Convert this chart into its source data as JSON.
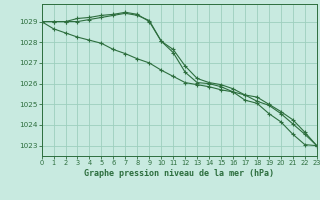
{
  "title": "Graphe pression niveau de la mer (hPa)",
  "bg_color": "#c8eae0",
  "line_color": "#2d6e3e",
  "grid_color": "#9ecfbe",
  "x_min": 0,
  "x_max": 23,
  "y_min": 1022.5,
  "y_max": 1029.85,
  "series": [
    {
      "x": [
        0,
        1,
        2,
        3,
        4,
        5,
        6,
        7,
        8,
        9,
        10,
        11,
        12,
        13,
        14,
        15,
        16,
        17,
        18,
        19,
        20,
        21,
        22,
        23
      ],
      "y": [
        1029.0,
        1029.0,
        1029.0,
        1029.15,
        1029.2,
        1029.3,
        1029.35,
        1029.45,
        1029.35,
        1029.0,
        1028.05,
        1027.5,
        1026.55,
        1026.05,
        1026.0,
        1025.85,
        1025.6,
        1025.2,
        1025.05,
        1024.55,
        1024.15,
        1023.55,
        1023.05,
        1023.0
      ]
    },
    {
      "x": [
        0,
        1,
        2,
        3,
        4,
        5,
        6,
        7,
        8,
        9,
        10,
        11,
        12,
        13,
        14,
        15,
        16,
        17,
        18,
        19,
        20,
        21,
        22,
        23
      ],
      "y": [
        1029.0,
        1028.65,
        1028.45,
        1028.25,
        1028.1,
        1027.95,
        1027.65,
        1027.45,
        1027.2,
        1027.0,
        1026.65,
        1026.35,
        1026.05,
        1025.95,
        1025.85,
        1025.7,
        1025.6,
        1025.45,
        1025.35,
        1025.0,
        1024.65,
        1024.25,
        1023.65,
        1023.0
      ]
    },
    {
      "x": [
        0,
        1,
        2,
        3,
        4,
        5,
        6,
        7,
        8,
        9,
        10,
        11,
        12,
        13,
        14,
        15,
        16,
        17,
        18,
        19,
        20,
        21,
        22,
        23
      ],
      "y": [
        1029.0,
        1029.0,
        1029.0,
        1029.0,
        1029.1,
        1029.2,
        1029.3,
        1029.4,
        1029.3,
        1029.05,
        1028.05,
        1027.65,
        1026.85,
        1026.25,
        1026.05,
        1025.95,
        1025.75,
        1025.45,
        1025.15,
        1024.95,
        1024.55,
        1024.05,
        1023.55,
        1023.0
      ]
    }
  ],
  "yticks": [
    1023,
    1024,
    1025,
    1026,
    1027,
    1028,
    1029
  ],
  "xticks": [
    0,
    1,
    2,
    3,
    4,
    5,
    6,
    7,
    8,
    9,
    10,
    11,
    12,
    13,
    14,
    15,
    16,
    17,
    18,
    19,
    20,
    21,
    22,
    23
  ]
}
